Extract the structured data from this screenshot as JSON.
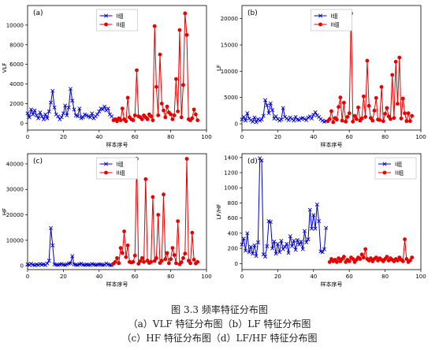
{
  "caption": {
    "title": "图 3.3   频率特征分布图",
    "line1": "（a）VLF 特征分布图（b）LF 特征分布图",
    "line2": "（c）HF 特征分布图（d）LF/HF 特征分布图"
  },
  "colors": {
    "group1": "#0000cc",
    "group2": "#e60000"
  },
  "chart_data": [
    {
      "type": "line",
      "panel_label": "(a)",
      "xlabel": "样本序号",
      "ylabel": "VLF",
      "xlim": [
        0,
        100
      ],
      "ylim": [
        -700,
        12000
      ],
      "xticks": [
        0,
        20,
        40,
        60,
        80,
        100
      ],
      "yticks": [
        0,
        2000,
        4000,
        6000,
        8000,
        10000
      ],
      "legend_position": "top-center",
      "series": [
        {
          "name": "I组",
          "marker": "x",
          "x": [
            0,
            1,
            2,
            3,
            4,
            5,
            6,
            7,
            8,
            9,
            10,
            11,
            12,
            13,
            14,
            15,
            16,
            17,
            18,
            19,
            20,
            21,
            22,
            23,
            24,
            25,
            26,
            27,
            28,
            29,
            30,
            31,
            32,
            33,
            34,
            35,
            36,
            37,
            38,
            39,
            40,
            41,
            42,
            43,
            44,
            45,
            46,
            47
          ],
          "values": [
            1000,
            600,
            1400,
            900,
            1300,
            800,
            500,
            1100,
            700,
            400,
            900,
            500,
            1200,
            2100,
            3300,
            1600,
            900,
            700,
            400,
            600,
            1000,
            1800,
            800,
            1600,
            3500,
            2300,
            1400,
            800,
            700,
            1500,
            500,
            600,
            900,
            800,
            700,
            600,
            1000,
            500,
            700,
            900,
            1200,
            1500,
            1400,
            1700,
            1300,
            1500,
            900,
            700
          ]
        },
        {
          "name": "II组",
          "marker": "o",
          "x": [
            48,
            49,
            50,
            51,
            52,
            53,
            54,
            55,
            56,
            57,
            58,
            59,
            60,
            61,
            62,
            63,
            64,
            65,
            66,
            67,
            68,
            69,
            70,
            71,
            72,
            73,
            74,
            75,
            76,
            77,
            78,
            79,
            80,
            81,
            82,
            83,
            84,
            85,
            86,
            87,
            88,
            89,
            90,
            91,
            92,
            93,
            94,
            95
          ],
          "values": [
            300,
            400,
            200,
            500,
            300,
            1500,
            400,
            200,
            2600,
            600,
            400,
            300,
            800,
            5400,
            700,
            600,
            400,
            800,
            600,
            400,
            900,
            700,
            300,
            9900,
            3700,
            800,
            7000,
            2000,
            1300,
            600,
            1700,
            1100,
            900,
            400,
            800,
            4500,
            1200,
            9500,
            600,
            3900,
            11200,
            9000,
            400,
            300,
            500,
            1400,
            900,
            300
          ]
        }
      ]
    },
    {
      "type": "line",
      "panel_label": "(b)",
      "xlabel": "样本序号",
      "ylabel": "LF",
      "xlim": [
        0,
        100
      ],
      "ylim": [
        -1200,
        22500
      ],
      "xticks": [
        0,
        20,
        40,
        60,
        80,
        100
      ],
      "yticks": [
        0,
        5000,
        10000,
        15000,
        20000
      ],
      "legend_position": "top-center",
      "series": [
        {
          "name": "I组",
          "marker": "x",
          "x": [
            0,
            1,
            2,
            3,
            4,
            5,
            6,
            7,
            8,
            9,
            10,
            11,
            12,
            13,
            14,
            15,
            16,
            17,
            18,
            19,
            20,
            21,
            22,
            23,
            24,
            25,
            26,
            27,
            28,
            29,
            30,
            31,
            32,
            33,
            34,
            35,
            36,
            37,
            38,
            39,
            40,
            41,
            42,
            43,
            44,
            45,
            46,
            47
          ],
          "values": [
            800,
            1300,
            600,
            2000,
            1000,
            700,
            400,
            1200,
            300,
            900,
            600,
            800,
            1500,
            4500,
            3500,
            2000,
            3900,
            2600,
            1000,
            1400,
            900,
            600,
            800,
            3000,
            1300,
            1000,
            700,
            1200,
            900,
            600,
            1300,
            800,
            700,
            1000,
            1100,
            900,
            700,
            1200,
            1400,
            1000,
            1700,
            2200,
            1600,
            1300,
            900,
            600,
            400,
            500
          ]
        },
        {
          "name": "II组",
          "marker": "o",
          "x": [
            48,
            49,
            50,
            51,
            52,
            53,
            54,
            55,
            56,
            57,
            58,
            59,
            60,
            61,
            62,
            63,
            64,
            65,
            66,
            67,
            68,
            69,
            70,
            71,
            72,
            73,
            74,
            75,
            76,
            77,
            78,
            79,
            80,
            81,
            82,
            83,
            84,
            85,
            86,
            87,
            88,
            89,
            90,
            91,
            92,
            93,
            94,
            95
          ],
          "values": [
            500,
            900,
            2400,
            300,
            1100,
            800,
            3200,
            5000,
            600,
            4000,
            400,
            1300,
            2000,
            21000,
            400,
            1500,
            900,
            3100,
            600,
            1000,
            5200,
            1300,
            12000,
            3400,
            1100,
            600,
            2500,
            4900,
            800,
            700,
            7000,
            500,
            1900,
            3000,
            1400,
            900,
            9300,
            1100,
            11800,
            3800,
            12600,
            1000,
            4800,
            2000,
            500,
            2000,
            500,
            1500
          ]
        }
      ]
    },
    {
      "type": "line",
      "panel_label": "(c)",
      "xlabel": "样本序号",
      "ylabel": "HF",
      "xlim": [
        0,
        100
      ],
      "ylim": [
        -1500,
        44000
      ],
      "xticks": [
        0,
        20,
        40,
        60,
        80,
        100
      ],
      "yticks": [
        0,
        10000,
        20000,
        30000,
        40000
      ],
      "legend_position": "top-center",
      "series": [
        {
          "name": "I组",
          "marker": "x",
          "x": [
            0,
            1,
            2,
            3,
            4,
            5,
            6,
            7,
            8,
            9,
            10,
            11,
            12,
            13,
            14,
            15,
            16,
            17,
            18,
            19,
            20,
            21,
            22,
            23,
            24,
            25,
            26,
            27,
            28,
            29,
            30,
            31,
            32,
            33,
            34,
            35,
            36,
            37,
            38,
            39,
            40,
            41,
            42,
            43,
            44,
            45,
            46,
            47
          ],
          "values": [
            600,
            300,
            800,
            400,
            200,
            500,
            300,
            700,
            400,
            600,
            300,
            900,
            2000,
            14800,
            8000,
            600,
            400,
            300,
            500,
            700,
            400,
            300,
            600,
            900,
            1000,
            3800,
            500,
            400,
            300,
            600,
            800,
            400,
            300,
            500,
            400,
            300,
            700,
            500,
            300,
            400,
            600,
            500,
            300,
            400,
            900,
            500,
            300,
            200
          ]
        },
        {
          "name": "II组",
          "marker": "o",
          "x": [
            48,
            49,
            50,
            51,
            52,
            53,
            54,
            55,
            56,
            57,
            58,
            59,
            60,
            61,
            62,
            63,
            64,
            65,
            66,
            67,
            68,
            69,
            70,
            71,
            72,
            73,
            74,
            75,
            76,
            77,
            78,
            79,
            80,
            81,
            82,
            83,
            84,
            85,
            86,
            87,
            88,
            89,
            90,
            91,
            92,
            93,
            94,
            95
          ],
          "values": [
            800,
            1500,
            3000,
            1000,
            7000,
            5000,
            13500,
            3400,
            8000,
            1500,
            1300,
            1500,
            4000,
            42000,
            800,
            1800,
            3000,
            1500,
            34000,
            2000,
            1100,
            1500,
            27000,
            1900,
            3000,
            20000,
            1100,
            2000,
            28000,
            2600,
            5000,
            1000,
            2600,
            7000,
            4200,
            1000,
            17500,
            600,
            1400,
            3000,
            4800,
            42000,
            2000,
            1000,
            13000,
            2400,
            900,
            1500
          ]
        }
      ]
    },
    {
      "type": "line",
      "panel_label": "(d)",
      "xlabel": "样本序号",
      "ylabel": "LF/HF",
      "xlim": [
        0,
        100
      ],
      "ylim": [
        -80,
        1450
      ],
      "xticks": [
        0,
        20,
        40,
        60,
        80,
        100
      ],
      "yticks": [
        0,
        200,
        400,
        600,
        800,
        1000,
        1200,
        1400
      ],
      "legend_position": "top-right",
      "series": [
        {
          "name": "I组",
          "marker": "x",
          "x": [
            0,
            1,
            2,
            3,
            4,
            5,
            6,
            7,
            8,
            9,
            10,
            11,
            12,
            13,
            14,
            15,
            16,
            17,
            18,
            19,
            20,
            21,
            22,
            23,
            24,
            25,
            26,
            27,
            28,
            29,
            30,
            31,
            32,
            33,
            34,
            35,
            36,
            37,
            38,
            39,
            40,
            41,
            42,
            43,
            44,
            45,
            46,
            47
          ],
          "values": [
            250,
            330,
            170,
            400,
            150,
            220,
            130,
            240,
            100,
            280,
            1390,
            1360,
            120,
            90,
            230,
            560,
            550,
            200,
            290,
            130,
            260,
            150,
            300,
            190,
            220,
            260,
            140,
            360,
            230,
            300,
            180,
            310,
            250,
            290,
            190,
            430,
            280,
            320,
            710,
            460,
            640,
            460,
            780,
            560,
            160,
            150,
            190,
            470
          ]
        },
        {
          "name": "II组",
          "marker": "o",
          "x": [
            49,
            50,
            51,
            52,
            53,
            54,
            55,
            56,
            57,
            58,
            59,
            60,
            61,
            62,
            63,
            64,
            65,
            66,
            67,
            68,
            69,
            70,
            71,
            72,
            73,
            74,
            75,
            76,
            77,
            78,
            79,
            80,
            81,
            82,
            83,
            84,
            85,
            86,
            87,
            88,
            89,
            90,
            91,
            92,
            93,
            94,
            95
          ],
          "values": [
            20,
            60,
            30,
            50,
            20,
            70,
            30,
            60,
            90,
            20,
            50,
            30,
            80,
            60,
            20,
            50,
            80,
            60,
            120,
            80,
            190,
            60,
            40,
            70,
            30,
            60,
            80,
            40,
            70,
            50,
            30,
            60,
            90,
            40,
            70,
            50,
            30,
            60,
            40,
            80,
            50,
            30,
            320,
            60,
            20,
            40,
            80
          ]
        }
      ]
    }
  ]
}
